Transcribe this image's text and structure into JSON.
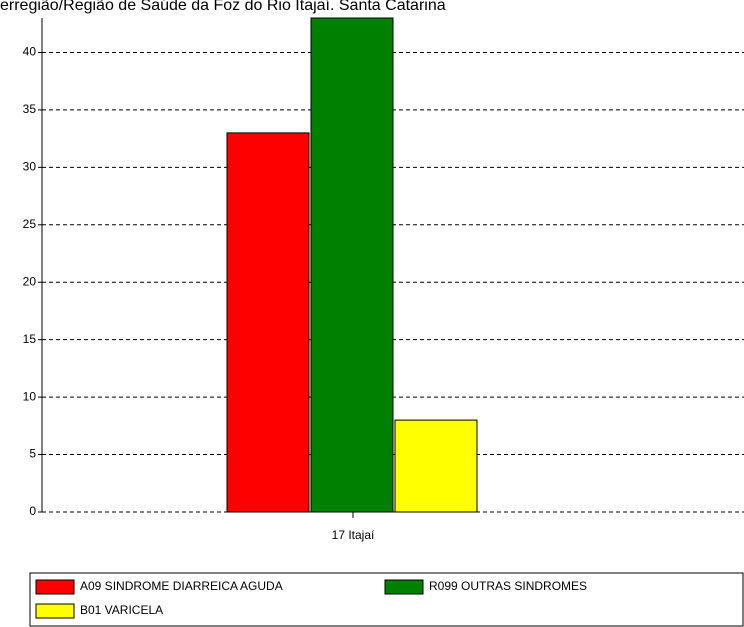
{
  "chart_data": {
    "type": "bar",
    "title": "erregião/Região de Saúde da Foz do Rio Itajaí. Santa Catarina",
    "categories": [
      "17 Itajaí"
    ],
    "series": [
      {
        "name": "A09 SINDROME DIARREICA AGUDA",
        "color": "#ff0000",
        "values": [
          33
        ]
      },
      {
        "name": "R099 OUTRAS SINDROMES",
        "color": "#008000",
        "values": [
          43
        ]
      },
      {
        "name": "B01 VARICELA",
        "color": "#ffff00",
        "values": [
          8
        ]
      }
    ],
    "ylim": [
      0,
      43
    ],
    "yticks": [
      0,
      5,
      10,
      15,
      20,
      25,
      30,
      35,
      40
    ],
    "grid": true
  }
}
